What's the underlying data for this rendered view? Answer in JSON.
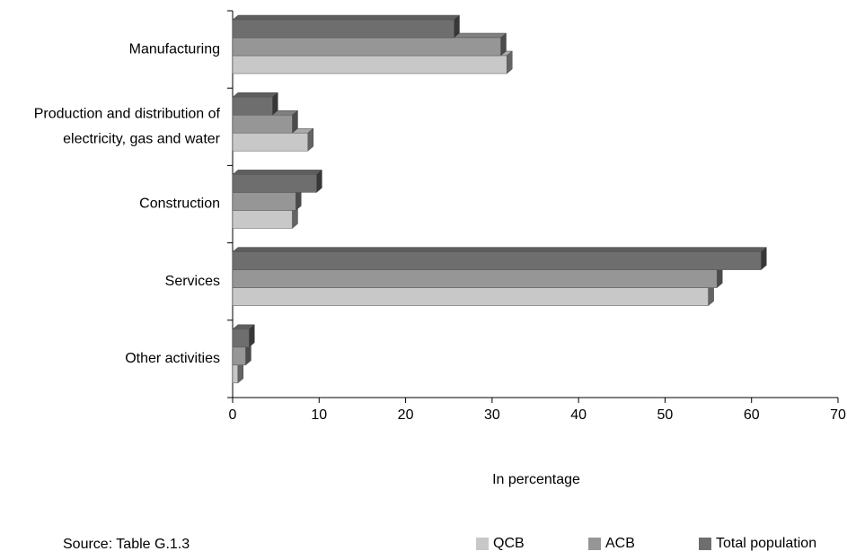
{
  "chart_data": {
    "type": "bar",
    "orientation": "horizontal",
    "categories": [
      "Manufacturing",
      "Production and distribution of electricity, gas and water",
      "Construction",
      "Services",
      "Other activities"
    ],
    "series": [
      {
        "name": "QCB",
        "color": "#c8c8c8",
        "values": [
          31.7,
          8.7,
          6.9,
          55,
          0.6
        ]
      },
      {
        "name": "ACB",
        "color": "#969696",
        "values": [
          31,
          6.9,
          7.3,
          56,
          1.5
        ]
      },
      {
        "name": "Total population",
        "color": "#6e6e6e",
        "values": [
          25.6,
          4.6,
          9.7,
          61.1,
          1.9
        ]
      }
    ],
    "xlim": [
      0,
      70
    ],
    "xticks": [
      0,
      10,
      20,
      30,
      40,
      50,
      60,
      70
    ],
    "xlabel": "In percentage",
    "source": "Source: Table G.1.3",
    "legend": "bottom-right",
    "grid": false
  }
}
